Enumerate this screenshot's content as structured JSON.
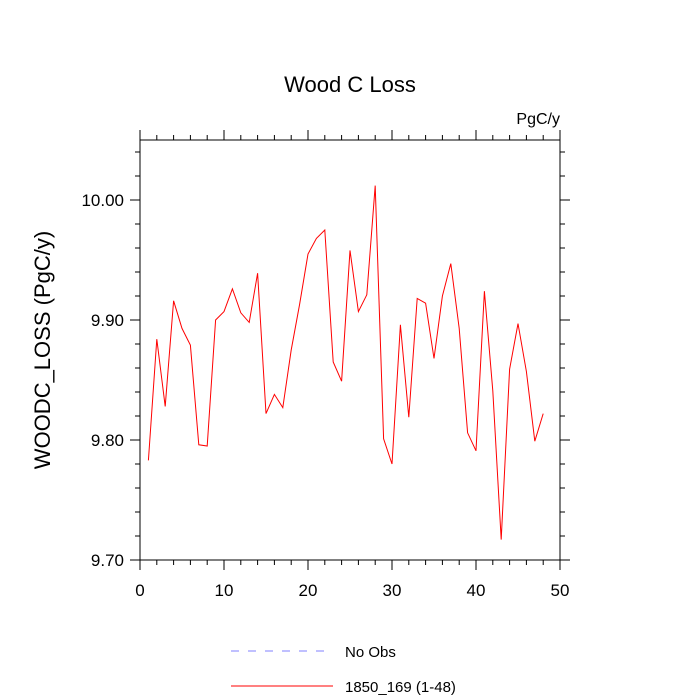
{
  "chart_data": {
    "type": "line",
    "title": "Wood C Loss",
    "units_label": "PgC/y",
    "xlabel": "",
    "ylabel": "WOODC_LOSS  (PgC/y)",
    "xlim": [
      0,
      50
    ],
    "ylim": [
      9.7,
      10.05
    ],
    "x_ticks": [
      0,
      10,
      20,
      30,
      40,
      50
    ],
    "x_tick_labels": [
      "0",
      "10",
      "20",
      "30",
      "40",
      "50"
    ],
    "y_ticks": [
      9.7,
      9.8,
      9.9,
      10.0
    ],
    "y_tick_labels": [
      "9.70",
      "9.80",
      "9.90",
      "10.00"
    ],
    "grid": false,
    "legend_position": "bottom",
    "series": [
      {
        "name": "No Obs",
        "color": "#8080ff",
        "dashed": true,
        "x": [],
        "values": []
      },
      {
        "name": "1850_169 (1-48)",
        "color": "#ff0000",
        "dashed": false,
        "x": [
          1,
          2,
          3,
          4,
          5,
          6,
          7,
          8,
          9,
          10,
          11,
          12,
          13,
          14,
          15,
          16,
          17,
          18,
          19,
          20,
          21,
          22,
          23,
          24,
          25,
          26,
          27,
          28,
          29,
          30,
          31,
          32,
          33,
          34,
          35,
          36,
          37,
          38,
          39,
          40,
          41,
          42,
          43,
          44,
          45,
          46,
          47,
          48
        ],
        "values": [
          9.783,
          9.884,
          9.828,
          9.916,
          9.893,
          9.879,
          9.796,
          9.795,
          9.9,
          9.907,
          9.926,
          9.906,
          9.898,
          9.939,
          9.822,
          9.838,
          9.827,
          9.875,
          9.913,
          9.955,
          9.968,
          9.975,
          9.865,
          9.849,
          9.958,
          9.907,
          9.921,
          10.012,
          9.801,
          9.78,
          9.896,
          9.819,
          9.918,
          9.914,
          9.868,
          9.92,
          9.947,
          9.893,
          9.806,
          9.791,
          9.924,
          9.841,
          9.717,
          9.859,
          9.897,
          9.857,
          9.799,
          9.822
        ]
      }
    ]
  }
}
